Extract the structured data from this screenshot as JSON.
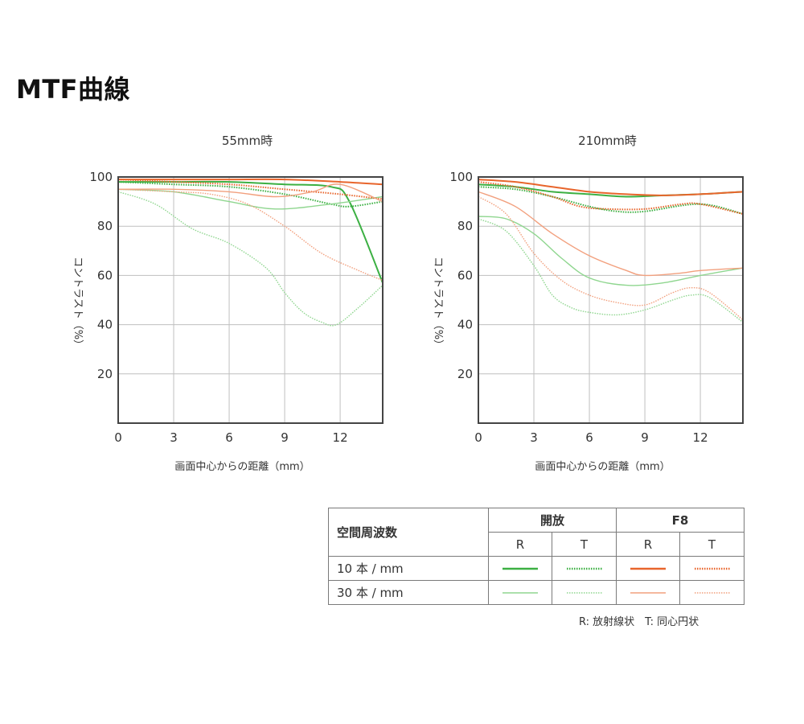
{
  "page": {
    "title": "MTF曲線"
  },
  "colors": {
    "open_10": "#3cb043",
    "open_30": "#8fd68f",
    "f8_10": "#e8652c",
    "f8_30": "#f2a07e",
    "axis": "#444444",
    "grid": "#bfbfbf"
  },
  "chart_data": [
    {
      "type": "line",
      "title": "55mm時",
      "xlabel": "画面中心からの距離（mm）",
      "ylabel": "コントラスト（%）",
      "xlim": [
        0,
        14.3
      ],
      "ylim": [
        0,
        100
      ],
      "xticks": [
        0,
        3,
        6,
        9,
        12
      ],
      "yticks": [
        20,
        40,
        60,
        80,
        100
      ],
      "grid": true,
      "series": [
        {
          "key": "open_10_R",
          "aperture": "open",
          "freq": 10,
          "direction": "R",
          "x": [
            0,
            3,
            6,
            9,
            11.5,
            12.5,
            14.3
          ],
          "y": [
            98,
            98,
            98,
            97,
            96,
            90,
            57
          ]
        },
        {
          "key": "open_10_T",
          "aperture": "open",
          "freq": 10,
          "direction": "T",
          "x": [
            0,
            3,
            6,
            9,
            11.5,
            12.5,
            14.3
          ],
          "y": [
            98,
            97,
            96,
            93,
            89,
            88,
            90
          ]
        },
        {
          "key": "open_30_R",
          "aperture": "open",
          "freq": 30,
          "direction": "R",
          "x": [
            0,
            3,
            6,
            8.5,
            11.5,
            14.3
          ],
          "y": [
            95,
            94,
            90,
            87,
            89,
            92
          ]
        },
        {
          "key": "open_30_T",
          "aperture": "open",
          "freq": 30,
          "direction": "T",
          "x": [
            0,
            2,
            4,
            6,
            8,
            9,
            10,
            11,
            11.8,
            13,
            14.3
          ],
          "y": [
            94,
            89,
            79,
            73,
            63,
            53,
            45,
            41,
            40,
            47,
            56
          ]
        },
        {
          "key": "f8_10_R",
          "aperture": "F8",
          "freq": 10,
          "direction": "R",
          "x": [
            0,
            3,
            6,
            9,
            12,
            14.3
          ],
          "y": [
            99,
            99,
            99,
            99,
            98,
            97
          ]
        },
        {
          "key": "f8_10_T",
          "aperture": "F8",
          "freq": 10,
          "direction": "T",
          "x": [
            0,
            3,
            6,
            9,
            12,
            14.3
          ],
          "y": [
            99,
            98,
            97,
            95,
            93,
            91
          ]
        },
        {
          "key": "f8_30_R",
          "aperture": "F8",
          "freq": 30,
          "direction": "R",
          "x": [
            0,
            3,
            6,
            8.5,
            10.5,
            12,
            14.3
          ],
          "y": [
            95,
            95,
            94,
            92,
            94,
            97,
            90
          ]
        },
        {
          "key": "f8_30_T",
          "aperture": "F8",
          "freq": 30,
          "direction": "T",
          "x": [
            0,
            3,
            5,
            7,
            9,
            11,
            13,
            14.3
          ],
          "y": [
            95,
            94,
            93,
            89,
            80,
            69,
            62,
            58
          ]
        }
      ]
    },
    {
      "type": "line",
      "title": "210mm時",
      "xlabel": "画面中心からの距離（mm）",
      "ylabel": "コントラスト（%）",
      "xlim": [
        0,
        14.3
      ],
      "ylim": [
        0,
        100
      ],
      "xticks": [
        0,
        3,
        6,
        9,
        12
      ],
      "yticks": [
        20,
        40,
        60,
        80,
        100
      ],
      "grid": true,
      "series": [
        {
          "key": "open_10_R",
          "aperture": "open",
          "freq": 10,
          "direction": "R",
          "x": [
            0,
            2,
            4,
            6,
            8,
            10,
            12,
            14.3
          ],
          "y": [
            97,
            96,
            94,
            93,
            92,
            92.5,
            93,
            94
          ]
        },
        {
          "key": "open_10_T",
          "aperture": "open",
          "freq": 10,
          "direction": "T",
          "x": [
            0,
            2,
            4,
            6,
            7.5,
            9,
            12,
            14.3
          ],
          "y": [
            96,
            95,
            92,
            88,
            86,
            86,
            89,
            85
          ]
        },
        {
          "key": "open_30_R",
          "aperture": "open",
          "freq": 30,
          "direction": "R",
          "x": [
            0,
            1.5,
            3,
            4.5,
            6,
            8,
            10,
            12,
            14.3
          ],
          "y": [
            84,
            83,
            77,
            67,
            59,
            56,
            57,
            60,
            63
          ]
        },
        {
          "key": "open_30_T",
          "aperture": "open",
          "freq": 30,
          "direction": "T",
          "x": [
            0,
            1.5,
            3,
            4,
            5,
            6,
            7.5,
            9,
            10.5,
            11.5,
            12.5,
            14.3
          ],
          "y": [
            83,
            78,
            64,
            52,
            47,
            45,
            44,
            46,
            50,
            52,
            51,
            41
          ]
        },
        {
          "key": "f8_10_R",
          "aperture": "F8",
          "freq": 10,
          "direction": "R",
          "x": [
            0,
            2,
            4,
            6,
            8,
            10,
            12,
            14.3
          ],
          "y": [
            99,
            98,
            96,
            94,
            93,
            92.5,
            93,
            94
          ]
        },
        {
          "key": "f8_10_T",
          "aperture": "F8",
          "freq": 10,
          "direction": "T",
          "x": [
            0,
            2,
            4,
            5.5,
            7,
            9,
            11,
            12,
            14.3
          ],
          "y": [
            98,
            96,
            92,
            88,
            87,
            87,
            89,
            89,
            85
          ]
        },
        {
          "key": "f8_30_R",
          "aperture": "F8",
          "freq": 30,
          "direction": "R",
          "x": [
            0,
            2,
            4,
            6,
            8,
            9,
            11,
            12,
            14.3
          ],
          "y": [
            94,
            88,
            77,
            68,
            62,
            60,
            61,
            62,
            63
          ]
        },
        {
          "key": "f8_30_T",
          "aperture": "F8",
          "freq": 30,
          "direction": "T",
          "x": [
            0,
            1.5,
            3,
            4.5,
            6,
            7.5,
            9,
            10.5,
            11.5,
            12.5,
            14.3
          ],
          "y": [
            92,
            85,
            69,
            58,
            52,
            49,
            48,
            53,
            55,
            53,
            42
          ]
        }
      ]
    }
  ],
  "legend": {
    "header": "空間周波数",
    "group_open": "開放",
    "group_f8": "F8",
    "col_r": "R",
    "col_t": "T",
    "row_10": "10 本 / mm",
    "row_30": "30 本 / mm",
    "note": "R: 放射線状　T: 同心円状"
  }
}
